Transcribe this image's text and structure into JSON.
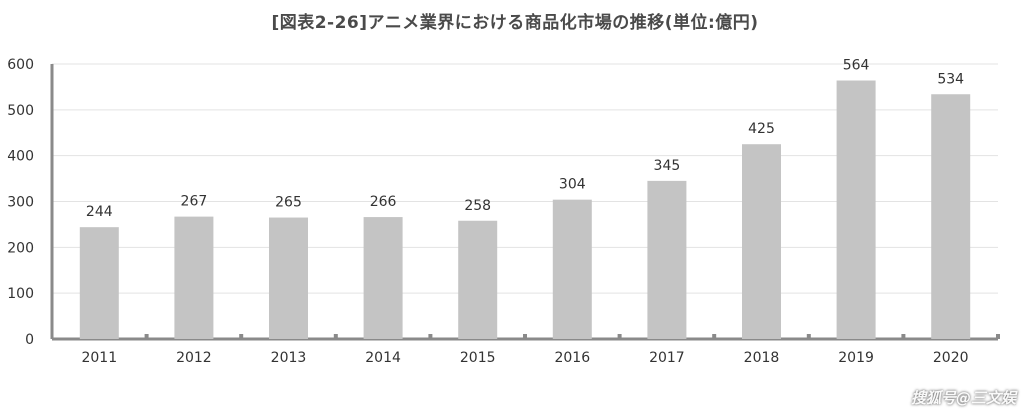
{
  "chart_data": {
    "type": "bar",
    "title": "[図表2-26]アニメ業界における商品化市場の推移(単位:億円)",
    "categories": [
      "2011",
      "2012",
      "2013",
      "2014",
      "2015",
      "2016",
      "2017",
      "2018",
      "2019",
      "2020"
    ],
    "values": [
      244,
      267,
      265,
      266,
      258,
      304,
      345,
      425,
      564,
      534
    ],
    "ylim": [
      0,
      600
    ],
    "yticks": [
      0,
      100,
      200,
      300,
      400,
      500,
      600
    ],
    "grid": true,
    "data_labels": true,
    "colors": {
      "bar": "#c4c4c4",
      "grid": "#e3e3e3",
      "axis": "#8a8a8a",
      "text": "#333333"
    }
  },
  "watermark": "搜狐号@三文娱"
}
